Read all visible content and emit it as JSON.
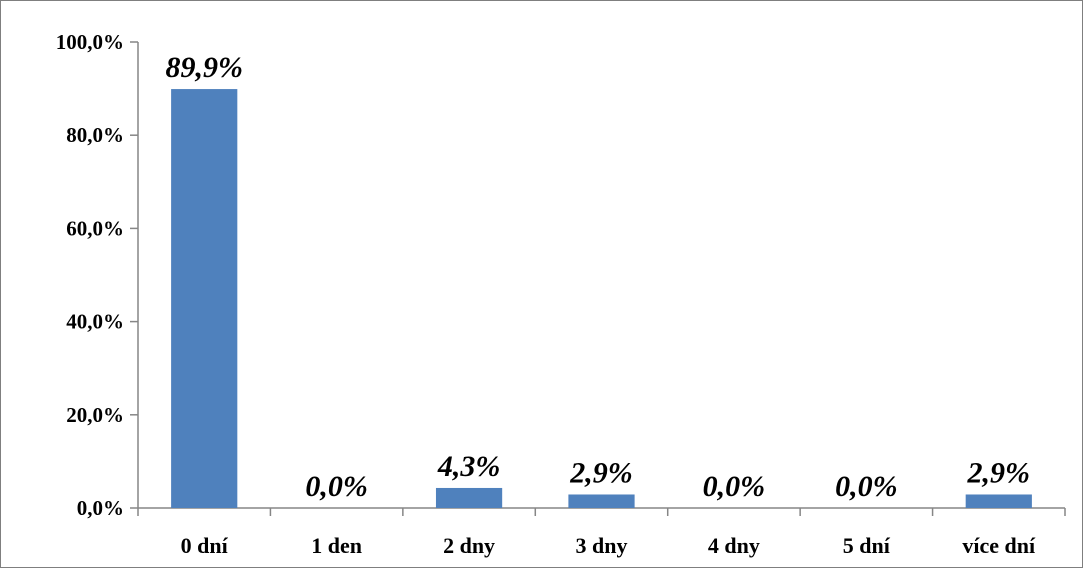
{
  "chart_data": {
    "type": "bar",
    "categories": [
      "0 dní",
      "1 den",
      "2 dny",
      "3 dny",
      "4 dny",
      "5 dní",
      "více dní"
    ],
    "values": [
      89.9,
      0.0,
      4.3,
      2.9,
      0.0,
      0.0,
      2.9
    ],
    "data_labels": [
      "89,9%",
      "0,0%",
      "4,3%",
      "2,9%",
      "0,0%",
      "0,0%",
      "2,9%"
    ],
    "y_ticks": [
      0,
      20,
      40,
      60,
      80,
      100
    ],
    "y_tick_labels": [
      "0,0%",
      "20,0%",
      "40,0%",
      "60,0%",
      "80,0%",
      "100,0%"
    ],
    "ylim": [
      0,
      100
    ],
    "title": "",
    "xlabel": "",
    "ylabel": "",
    "grid": false,
    "legend": "none",
    "bar_color": "#4f81bd",
    "axis_color": "#868686"
  }
}
